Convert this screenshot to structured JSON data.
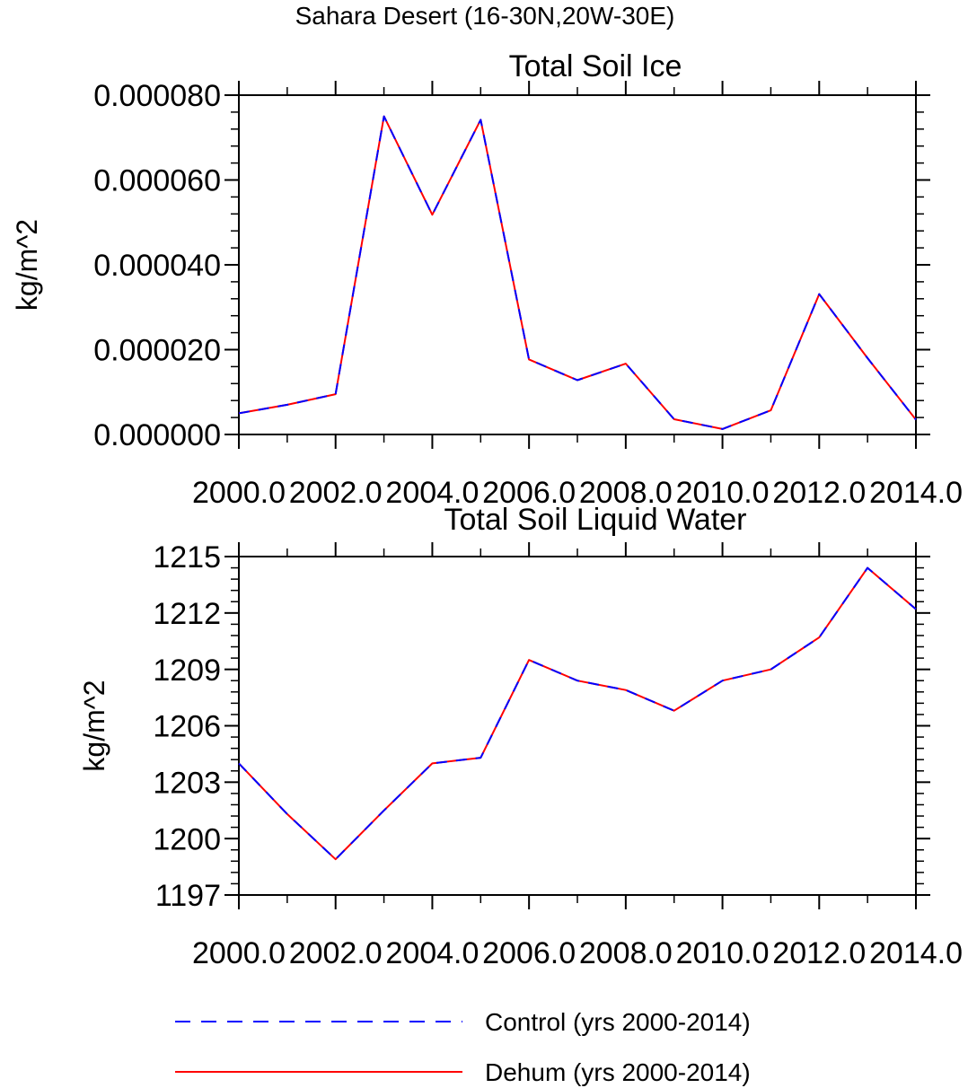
{
  "figure": {
    "suptitle": "Sahara Desert (16-30N,20W-30E)"
  },
  "legend": {
    "placement": "bottom",
    "entries": [
      {
        "label": "Control (yrs 2000-2014)",
        "color": "#0000ff",
        "style": "dashed"
      },
      {
        "label": "Dehum (yrs 2000-2014)",
        "color": "#ff0000",
        "style": "solid"
      }
    ]
  },
  "chart_data": [
    {
      "type": "line",
      "title": "Total Soil Ice",
      "xlabel": "",
      "ylabel": "kg/m^2",
      "xlim": [
        2000,
        2014
      ],
      "ylim": [
        0,
        8e-05
      ],
      "xticks": [
        2000,
        2002,
        2004,
        2006,
        2008,
        2010,
        2012,
        2014
      ],
      "xtick_labels": [
        "2000.0",
        "2002.0",
        "2004.0",
        "2006.0",
        "2008.0",
        "2010.0",
        "2012.0",
        "2014.0"
      ],
      "yticks": [
        0,
        2e-05,
        4e-05,
        6e-05,
        8e-05
      ],
      "ytick_labels": [
        "0.000000",
        "0.000020",
        "0.000040",
        "0.000060",
        "0.000080"
      ],
      "grid": false,
      "x": [
        2000,
        2001,
        2002,
        2003,
        2004,
        2005,
        2006,
        2007,
        2008,
        2009,
        2010,
        2011,
        2012,
        2013,
        2014
      ],
      "series": [
        {
          "name": "Control (yrs 2000-2014)",
          "color": "#0000ff",
          "style": "dashed",
          "values": [
            5e-06,
            7e-06,
            9.5e-06,
            7.5e-05,
            5.18e-05,
            7.42e-05,
            1.77e-05,
            1.28e-05,
            1.67e-05,
            3.6e-06,
            1.3e-06,
            5.7e-06,
            3.31e-05,
            1.8e-05,
            3.5e-06
          ]
        },
        {
          "name": "Dehum (yrs 2000-2014)",
          "color": "#ff0000",
          "style": "solid",
          "values": [
            5e-06,
            7e-06,
            9.5e-06,
            7.5e-05,
            5.18e-05,
            7.42e-05,
            1.77e-05,
            1.28e-05,
            1.67e-05,
            3.6e-06,
            1.3e-06,
            5.7e-06,
            3.31e-05,
            1.8e-05,
            3.5e-06
          ]
        }
      ]
    },
    {
      "type": "line",
      "title": "Total Soil Liquid Water",
      "xlabel": "",
      "ylabel": "kg/m^2",
      "xlim": [
        2000,
        2014
      ],
      "ylim": [
        1197,
        1215
      ],
      "xticks": [
        2000,
        2002,
        2004,
        2006,
        2008,
        2010,
        2012,
        2014
      ],
      "xtick_labels": [
        "2000.0",
        "2002.0",
        "2004.0",
        "2006.0",
        "2008.0",
        "2010.0",
        "2012.0",
        "2014.0"
      ],
      "yticks": [
        1197,
        1200,
        1203,
        1206,
        1209,
        1212,
        1215
      ],
      "ytick_labels": [
        "1197",
        "1200",
        "1203",
        "1206",
        "1209",
        "1212",
        "1215"
      ],
      "grid": false,
      "x": [
        2000,
        2001,
        2002,
        2003,
        2004,
        2005,
        2006,
        2007,
        2008,
        2009,
        2010,
        2011,
        2012,
        2013,
        2014
      ],
      "series": [
        {
          "name": "Control (yrs 2000-2014)",
          "color": "#0000ff",
          "style": "dashed",
          "values": [
            1204.0,
            1201.3,
            1198.9,
            1201.5,
            1204.0,
            1204.3,
            1209.5,
            1208.4,
            1207.9,
            1206.8,
            1208.4,
            1209.0,
            1210.7,
            1214.4,
            1212.2
          ]
        },
        {
          "name": "Dehum (yrs 2000-2014)",
          "color": "#ff0000",
          "style": "solid",
          "values": [
            1204.0,
            1201.3,
            1198.9,
            1201.5,
            1204.0,
            1204.3,
            1209.5,
            1208.4,
            1207.9,
            1206.8,
            1208.4,
            1209.0,
            1210.7,
            1214.4,
            1212.2
          ]
        }
      ]
    }
  ]
}
